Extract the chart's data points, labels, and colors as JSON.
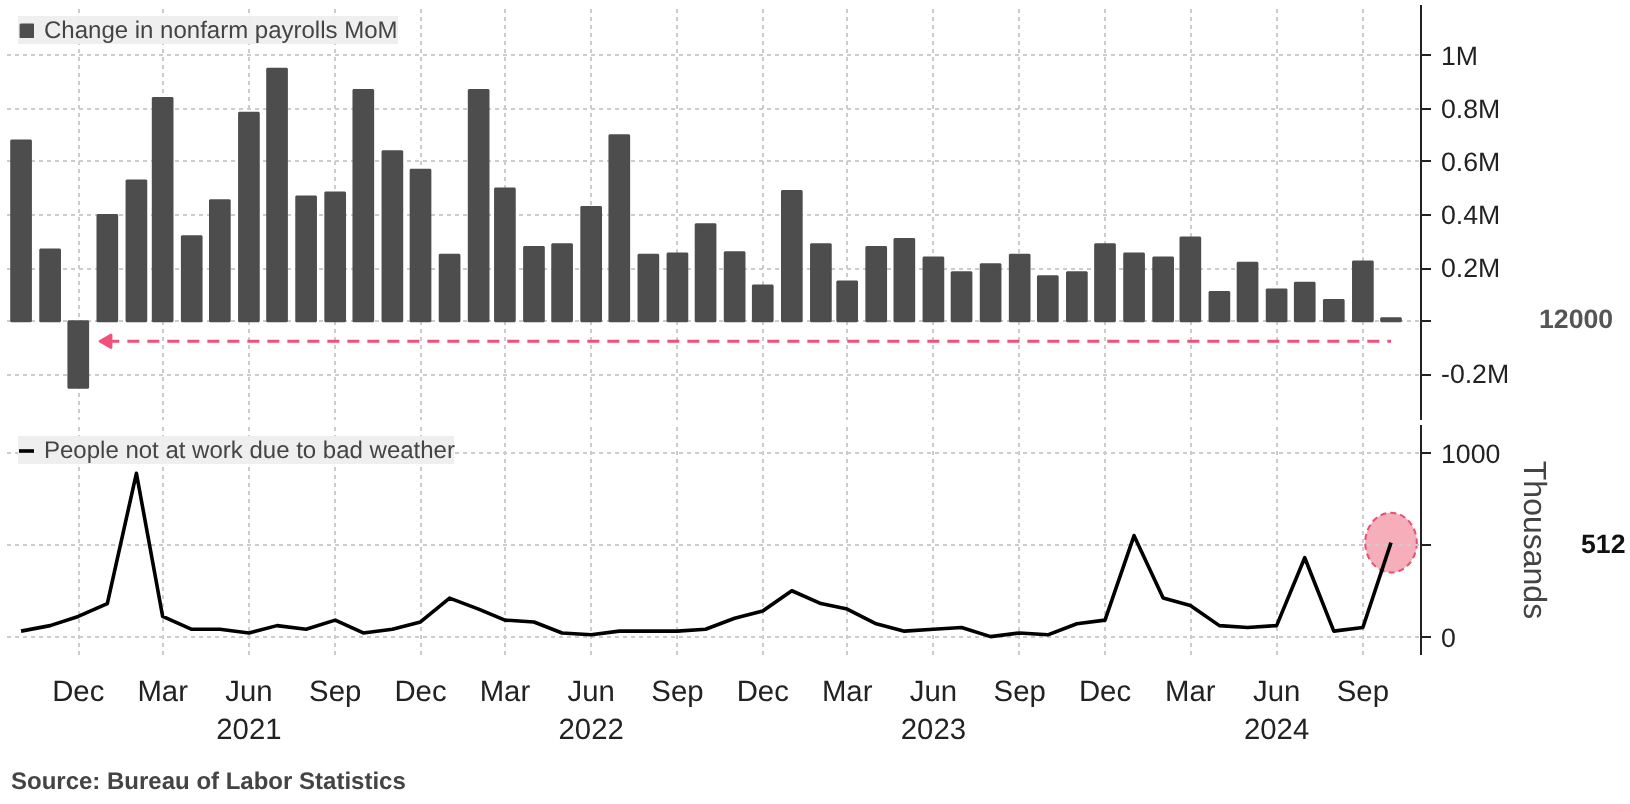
{
  "chart_data": [
    {
      "type": "bar",
      "x": [
        "2020-10",
        "2020-11",
        "2020-12",
        "2021-01",
        "2021-02",
        "2021-03",
        "2021-04",
        "2021-05",
        "2021-06",
        "2021-07",
        "2021-08",
        "2021-09",
        "2021-10",
        "2021-11",
        "2021-12",
        "2022-01",
        "2022-02",
        "2022-03",
        "2022-04",
        "2022-05",
        "2022-06",
        "2022-07",
        "2022-08",
        "2022-09",
        "2022-10",
        "2022-11",
        "2022-12",
        "2023-01",
        "2023-02",
        "2023-03",
        "2023-04",
        "2023-05",
        "2023-06",
        "2023-07",
        "2023-08",
        "2023-09",
        "2023-10",
        "2023-11",
        "2023-12",
        "2024-01",
        "2024-02",
        "2024-03",
        "2024-04",
        "2024-05",
        "2024-06",
        "2024-07",
        "2024-08",
        "2024-09",
        "2024-10"
      ],
      "series": [
        {
          "name": "Change in nonfarm payrolls MoM",
          "color": "#4d4d4d",
          "values": [
            0.68,
            0.27,
            -0.25,
            0.4,
            0.53,
            0.84,
            0.32,
            0.455,
            0.785,
            0.95,
            0.47,
            0.485,
            0.87,
            0.64,
            0.57,
            0.25,
            0.87,
            0.5,
            0.28,
            0.29,
            0.43,
            0.7,
            0.25,
            0.255,
            0.365,
            0.26,
            0.135,
            0.49,
            0.29,
            0.15,
            0.28,
            0.31,
            0.24,
            0.185,
            0.215,
            0.25,
            0.17,
            0.185,
            0.29,
            0.255,
            0.24,
            0.315,
            0.11,
            0.22,
            0.12,
            0.145,
            0.08,
            0.225,
            0.012
          ]
        },
        {
          "type": "line",
          "color": "#f0507a",
          "line_style": "dashed",
          "x": [
            "2021-01",
            "2024-10"
          ],
          "values": [
            -0.075,
            -0.075
          ]
        }
      ],
      "xlim": [
        "2020-09-16",
        "2024-11-02"
      ],
      "xticks": [
        {
          "value": "2020-12",
          "label": null
        },
        {
          "value": "2021-03",
          "label": null
        },
        {
          "value": "2021-06",
          "label": null
        },
        {
          "value": "2021-09",
          "label": null
        },
        {
          "value": "2021-12",
          "label": null
        },
        {
          "value": "2022-03",
          "label": null
        },
        {
          "value": "2022-06",
          "label": null
        },
        {
          "value": "2022-09",
          "label": null
        },
        {
          "value": "2022-12",
          "label": null
        },
        {
          "value": "2023-03",
          "label": null
        },
        {
          "value": "2023-06",
          "label": null
        },
        {
          "value": "2023-09",
          "label": null
        },
        {
          "value": "2023-12",
          "label": null
        },
        {
          "value": "2024-03",
          "label": null
        },
        {
          "value": "2024-06",
          "label": null
        },
        {
          "value": "2024-09",
          "label": null
        }
      ],
      "ylim": [
        -0.375,
        1.19
      ],
      "yticks": [
        {
          "value": -0.2,
          "label": "-0.2M"
        },
        {
          "value": 0,
          "label": null
        },
        {
          "value": 0.2,
          "label": "0.2M"
        },
        {
          "value": 0.4,
          "label": "0.4M"
        },
        {
          "value": 0.6,
          "label": "0.6M"
        },
        {
          "value": 0.8,
          "label": "0.8M"
        },
        {
          "value": 1,
          "label": "1M"
        }
      ],
      "annotations": [
        "12000"
      ],
      "tick_labels": "y",
      "grid": true,
      "legend": "top left"
    },
    {
      "type": "line",
      "x": [
        "2020-10",
        "2020-11",
        "2020-12",
        "2021-01",
        "2021-02",
        "2021-03",
        "2021-04",
        "2021-05",
        "2021-06",
        "2021-07",
        "2021-08",
        "2021-09",
        "2021-10",
        "2021-11",
        "2021-12",
        "2022-01",
        "2022-02",
        "2022-03",
        "2022-04",
        "2022-05",
        "2022-06",
        "2022-07",
        "2022-08",
        "2022-09",
        "2022-10",
        "2022-11",
        "2022-12",
        "2023-01",
        "2023-02",
        "2023-03",
        "2023-04",
        "2023-05",
        "2023-06",
        "2023-07",
        "2023-08",
        "2023-09",
        "2023-10",
        "2023-11",
        "2023-12",
        "2024-01",
        "2024-02",
        "2024-03",
        "2024-04",
        "2024-05",
        "2024-06",
        "2024-07",
        "2024-08",
        "2024-09",
        "2024-10"
      ],
      "series": [
        {
          "name": "People not at work due to bad weather",
          "color": "#000000",
          "values": [
            30,
            60,
            110,
            180,
            890,
            110,
            40,
            40,
            20,
            60,
            40,
            90,
            20,
            40,
            80,
            210,
            150,
            90,
            80,
            20,
            10,
            30,
            30,
            30,
            40,
            100,
            140,
            250,
            180,
            150,
            70,
            30,
            40,
            50,
            0,
            20,
            10,
            70,
            90,
            550,
            210,
            170,
            60,
            50,
            60,
            430,
            30,
            50,
            512
          ]
        }
      ],
      "xlim": [
        "2020-09-16",
        "2024-11-02"
      ],
      "xticks": [
        {
          "value": "2020-12",
          "label": "Dec"
        },
        {
          "value": "2021-03",
          "label": "Mar"
        },
        {
          "value": "2021-06",
          "label": "Jun\n2021"
        },
        {
          "value": "2021-09",
          "label": "Sep"
        },
        {
          "value": "2021-12",
          "label": "Dec"
        },
        {
          "value": "2022-03",
          "label": "Mar"
        },
        {
          "value": "2022-06",
          "label": "Jun\n2022"
        },
        {
          "value": "2022-09",
          "label": "Sep"
        },
        {
          "value": "2022-12",
          "label": "Dec"
        },
        {
          "value": "2023-03",
          "label": "Mar"
        },
        {
          "value": "2023-06",
          "label": "Jun\n2023"
        },
        {
          "value": "2023-09",
          "label": "Sep"
        },
        {
          "value": "2023-12",
          "label": "Dec"
        },
        {
          "value": "2024-03",
          "label": "Mar"
        },
        {
          "value": "2024-06",
          "label": "Jun\n2024"
        },
        {
          "value": "2024-09",
          "label": "Sep"
        }
      ],
      "ylim": [
        -100,
        1153
      ],
      "yticks": [
        0,
        {
          "value": 500,
          "label": null
        },
        1000
      ],
      "ylabel": "Thousands",
      "annotations": [
        "512",
        "Source: Bureau of Labor Statistics"
      ],
      "grid": true,
      "legend": "top left"
    }
  ]
}
